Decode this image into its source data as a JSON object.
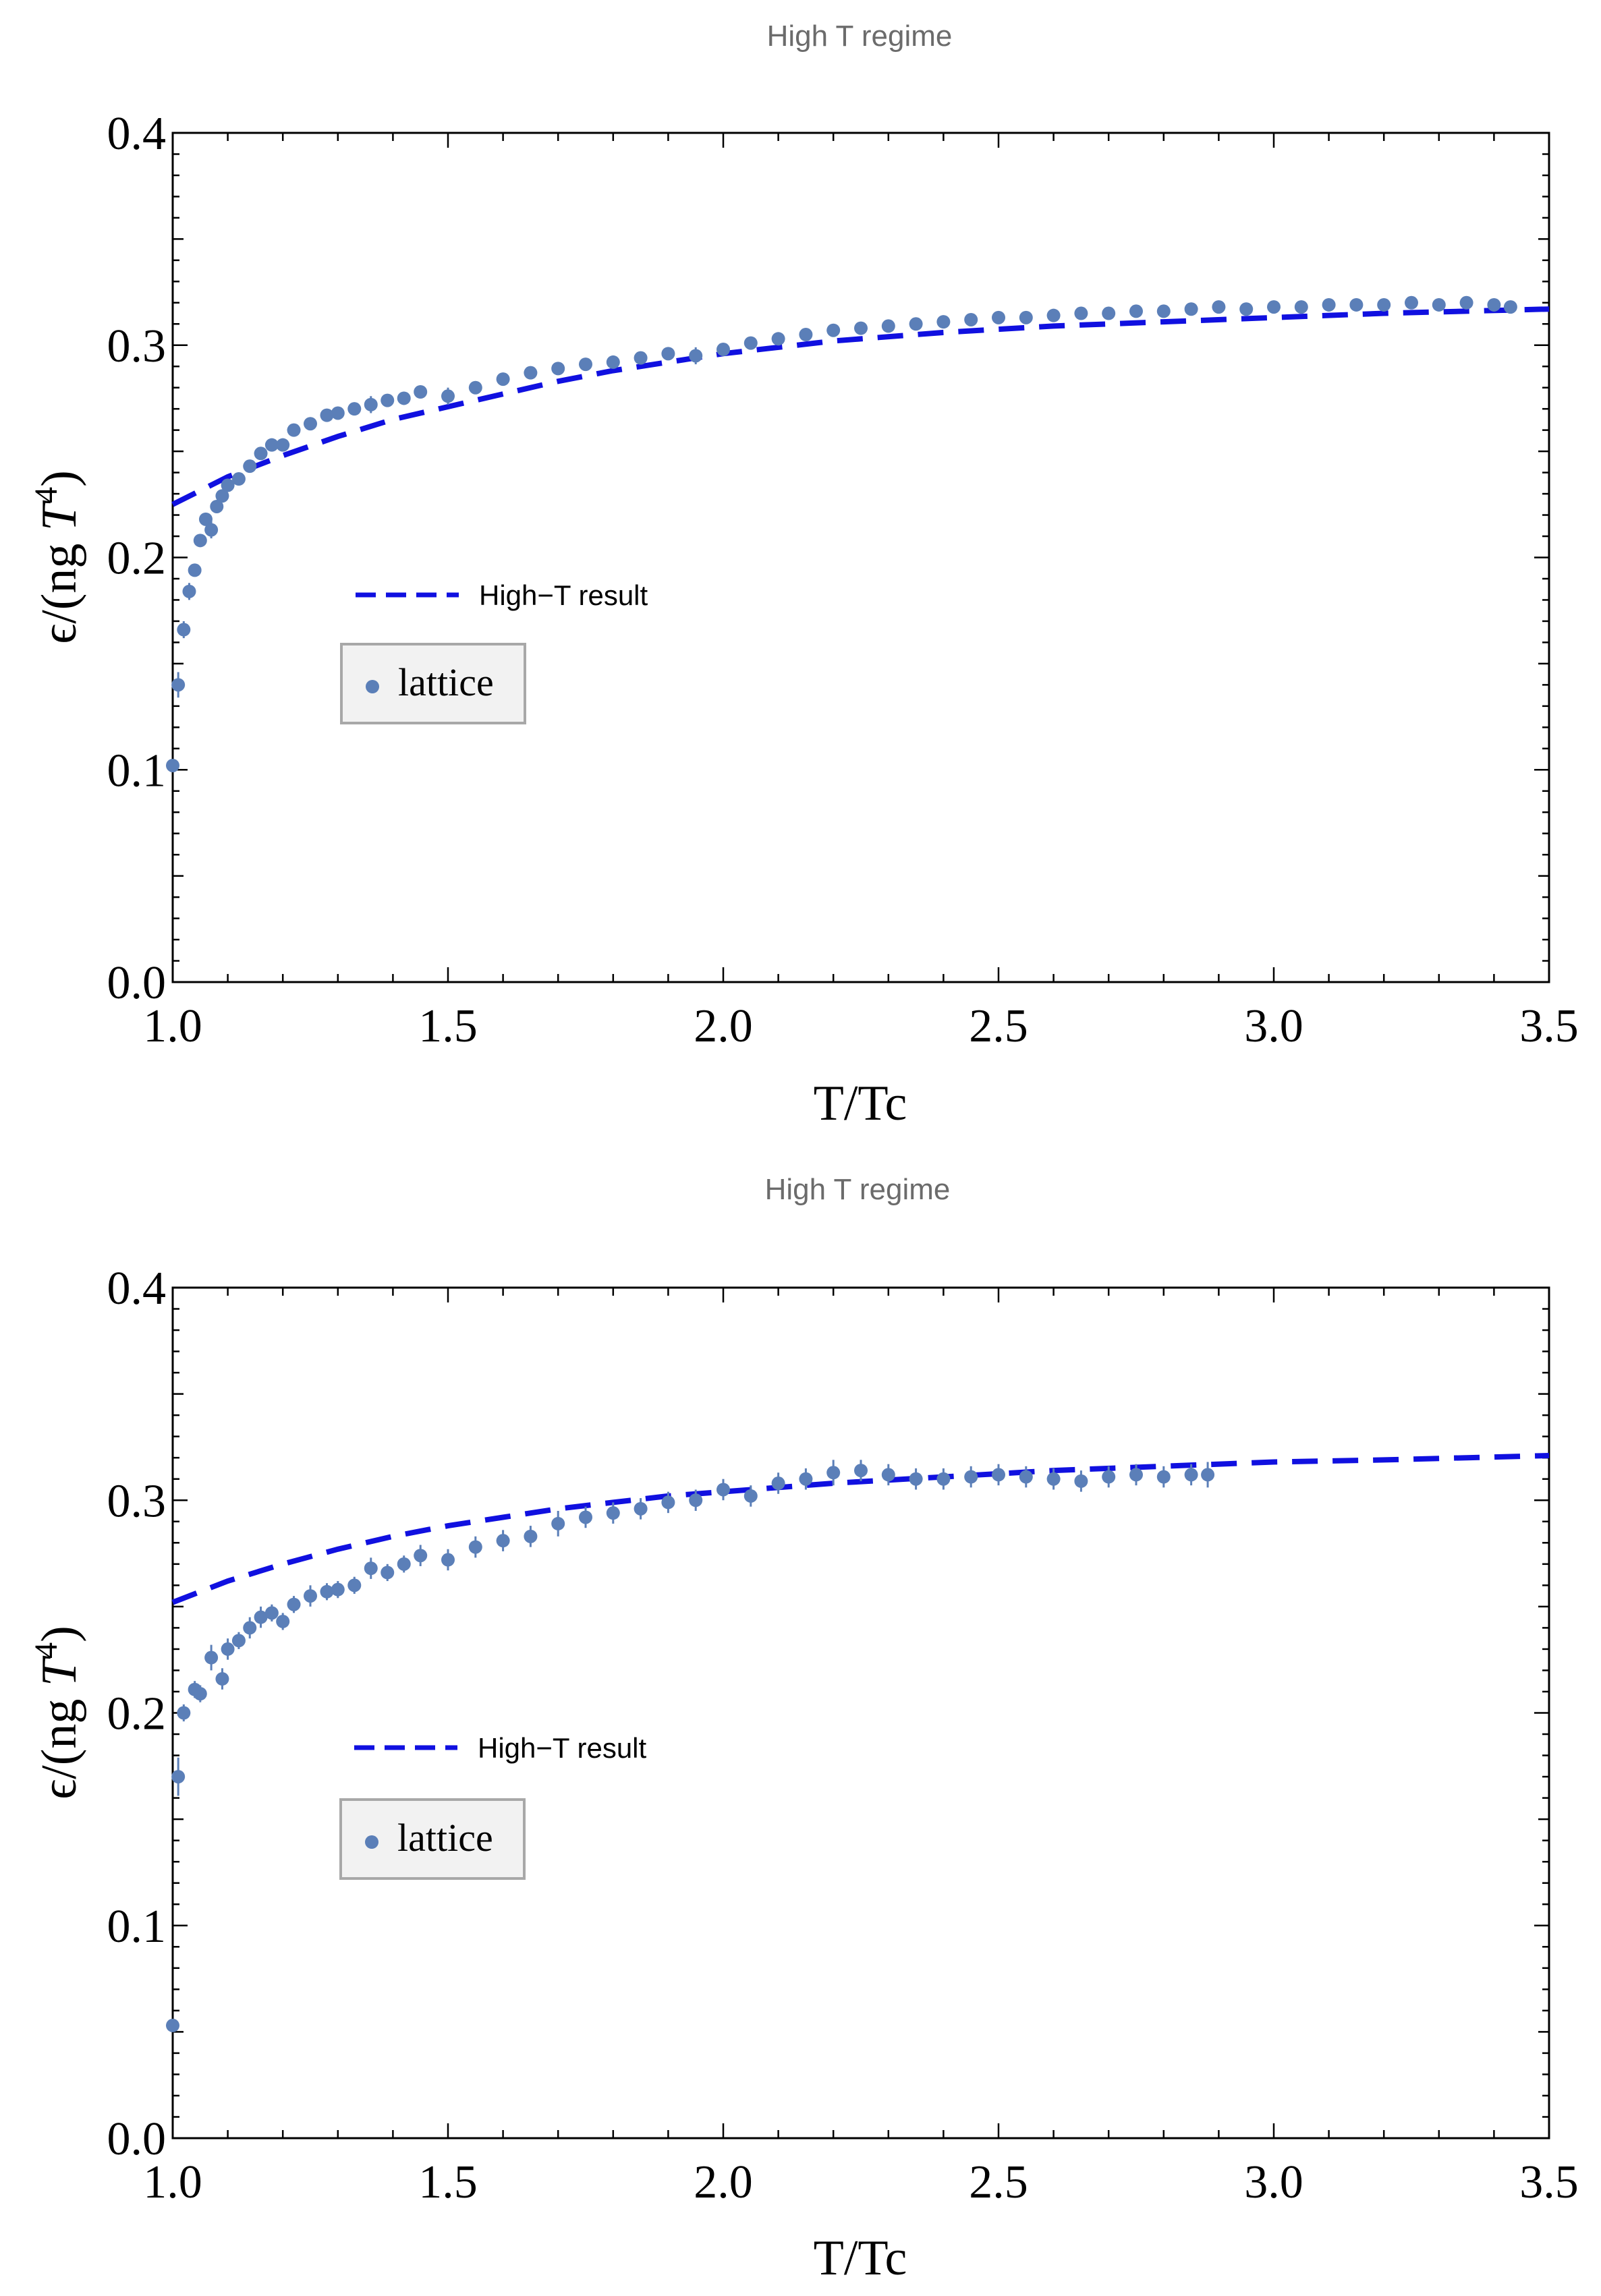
{
  "chart_data": [
    {
      "type": "scatter",
      "title": "High T regime",
      "xlabel": "T/Tc",
      "ylabel_prefix": "ϵ/(ng ",
      "ylabel_var": "T",
      "ylabel_sup": "4",
      "ylabel_suffix": ")",
      "xlim": [
        1.0,
        3.5
      ],
      "ylim": [
        0.0,
        0.4
      ],
      "xticks": [
        "1.0",
        "1.5",
        "2.0",
        "2.5",
        "3.0",
        "3.5"
      ],
      "yticks": [
        "0.0",
        "0.1",
        "0.2",
        "0.3",
        "0.4"
      ],
      "legend": {
        "line_label": "High−T result",
        "points_label": "lattice"
      },
      "colors": {
        "line": "#1010e0",
        "points": "#5b7fb8"
      },
      "series": [
        {
          "name": "High−T result",
          "kind": "dashed-line",
          "x": [
            1.0,
            1.1,
            1.2,
            1.3,
            1.4,
            1.5,
            1.6,
            1.7,
            1.8,
            1.9,
            2.0,
            2.2,
            2.4,
            2.6,
            2.8,
            3.0,
            3.2,
            3.5
          ],
          "y": [
            0.225,
            0.238,
            0.248,
            0.257,
            0.265,
            0.271,
            0.277,
            0.283,
            0.288,
            0.292,
            0.296,
            0.302,
            0.306,
            0.309,
            0.311,
            0.313,
            0.315,
            0.317
          ]
        },
        {
          "name": "lattice",
          "kind": "points",
          "x": [
            1.0,
            1.01,
            1.02,
            1.03,
            1.04,
            1.05,
            1.06,
            1.07,
            1.08,
            1.09,
            1.1,
            1.12,
            1.14,
            1.16,
            1.18,
            1.2,
            1.22,
            1.25,
            1.28,
            1.3,
            1.33,
            1.36,
            1.39,
            1.42,
            1.45,
            1.5,
            1.55,
            1.6,
            1.65,
            1.7,
            1.75,
            1.8,
            1.85,
            1.9,
            1.95,
            2.0,
            2.05,
            2.1,
            2.15,
            2.2,
            2.25,
            2.3,
            2.35,
            2.4,
            2.45,
            2.5,
            2.55,
            2.6,
            2.65,
            2.7,
            2.75,
            2.8,
            2.85,
            2.9,
            2.95,
            3.0,
            3.05,
            3.1,
            3.15,
            3.2,
            3.25,
            3.3,
            3.35,
            3.4,
            3.43
          ],
          "y": [
            0.102,
            0.14,
            0.166,
            0.184,
            0.194,
            0.208,
            0.218,
            0.213,
            0.224,
            0.229,
            0.234,
            0.237,
            0.243,
            0.249,
            0.253,
            0.253,
            0.26,
            0.263,
            0.267,
            0.268,
            0.27,
            0.272,
            0.274,
            0.275,
            0.278,
            0.276,
            0.28,
            0.284,
            0.287,
            0.289,
            0.291,
            0.292,
            0.294,
            0.296,
            0.295,
            0.298,
            0.301,
            0.303,
            0.305,
            0.307,
            0.308,
            0.309,
            0.31,
            0.311,
            0.312,
            0.313,
            0.313,
            0.314,
            0.315,
            0.315,
            0.316,
            0.316,
            0.317,
            0.318,
            0.317,
            0.318,
            0.318,
            0.319,
            0.319,
            0.319,
            0.32,
            0.319,
            0.32,
            0.319,
            0.318
          ],
          "err": [
            0.003,
            0.006,
            0.004,
            0.004,
            0.003,
            0.003,
            0.003,
            0.004,
            0.003,
            0.003,
            0.003,
            0.003,
            0.003,
            0.003,
            0.003,
            0.003,
            0.003,
            0.003,
            0.003,
            0.003,
            0.003,
            0.004,
            0.003,
            0.003,
            0.003,
            0.004,
            0.003,
            0.003,
            0.003,
            0.003,
            0.003,
            0.003,
            0.003,
            0.003,
            0.004,
            0.003,
            0.003,
            0.003,
            0.003,
            0.003,
            0.003,
            0.003,
            0.003,
            0.003,
            0.003,
            0.003,
            0.003,
            0.003,
            0.003,
            0.003,
            0.003,
            0.003,
            0.003,
            0.003,
            0.003,
            0.003,
            0.003,
            0.003,
            0.003,
            0.003,
            0.003,
            0.003,
            0.003,
            0.003,
            0.003
          ]
        }
      ]
    },
    {
      "type": "scatter",
      "title": "High T regime",
      "xlabel": "T/Tc",
      "ylabel_prefix": "ϵ/(ng ",
      "ylabel_var": "T",
      "ylabel_sup": "4",
      "ylabel_suffix": ")",
      "xlim": [
        1.0,
        3.5
      ],
      "ylim": [
        0.0,
        0.4
      ],
      "xticks": [
        "1.0",
        "1.5",
        "2.0",
        "2.5",
        "3.0",
        "3.5"
      ],
      "yticks": [
        "0.0",
        "0.1",
        "0.2",
        "0.3",
        "0.4"
      ],
      "legend": {
        "line_label": "High−T result",
        "points_label": "lattice"
      },
      "colors": {
        "line": "#1010e0",
        "points": "#5b7fb8"
      },
      "series": [
        {
          "name": "High−T result",
          "kind": "dashed-line",
          "x": [
            1.0,
            1.1,
            1.2,
            1.3,
            1.4,
            1.5,
            1.6,
            1.7,
            1.8,
            1.9,
            2.0,
            2.2,
            2.4,
            2.6,
            2.8,
            3.0,
            3.2,
            3.5
          ],
          "y": [
            0.252,
            0.262,
            0.27,
            0.277,
            0.283,
            0.288,
            0.292,
            0.296,
            0.299,
            0.302,
            0.304,
            0.308,
            0.311,
            0.314,
            0.316,
            0.318,
            0.319,
            0.321
          ]
        },
        {
          "name": "lattice",
          "kind": "points",
          "x": [
            1.0,
            1.01,
            1.02,
            1.04,
            1.05,
            1.07,
            1.09,
            1.1,
            1.12,
            1.14,
            1.16,
            1.18,
            1.2,
            1.22,
            1.25,
            1.28,
            1.3,
            1.33,
            1.36,
            1.39,
            1.42,
            1.45,
            1.5,
            1.55,
            1.6,
            1.65,
            1.7,
            1.75,
            1.8,
            1.85,
            1.9,
            1.95,
            2.0,
            2.05,
            2.1,
            2.15,
            2.2,
            2.25,
            2.3,
            2.35,
            2.4,
            2.45,
            2.5,
            2.55,
            2.6,
            2.65,
            2.7,
            2.75,
            2.8,
            2.85,
            2.88
          ],
          "y": [
            0.053,
            0.17,
            0.2,
            0.211,
            0.209,
            0.226,
            0.216,
            0.23,
            0.234,
            0.24,
            0.245,
            0.247,
            0.243,
            0.251,
            0.255,
            0.257,
            0.258,
            0.26,
            0.268,
            0.266,
            0.27,
            0.274,
            0.272,
            0.278,
            0.281,
            0.283,
            0.289,
            0.292,
            0.294,
            0.296,
            0.299,
            0.3,
            0.305,
            0.302,
            0.308,
            0.31,
            0.313,
            0.314,
            0.312,
            0.31,
            0.31,
            0.311,
            0.312,
            0.311,
            0.31,
            0.309,
            0.311,
            0.312,
            0.311,
            0.312,
            0.312
          ],
          "err": [
            0.003,
            0.009,
            0.004,
            0.004,
            0.004,
            0.006,
            0.005,
            0.005,
            0.004,
            0.005,
            0.005,
            0.004,
            0.004,
            0.004,
            0.005,
            0.004,
            0.004,
            0.004,
            0.005,
            0.004,
            0.004,
            0.005,
            0.005,
            0.005,
            0.005,
            0.005,
            0.006,
            0.005,
            0.005,
            0.005,
            0.005,
            0.005,
            0.005,
            0.005,
            0.005,
            0.005,
            0.006,
            0.005,
            0.005,
            0.005,
            0.005,
            0.005,
            0.005,
            0.005,
            0.005,
            0.005,
            0.005,
            0.005,
            0.005,
            0.005,
            0.006
          ]
        }
      ]
    }
  ]
}
